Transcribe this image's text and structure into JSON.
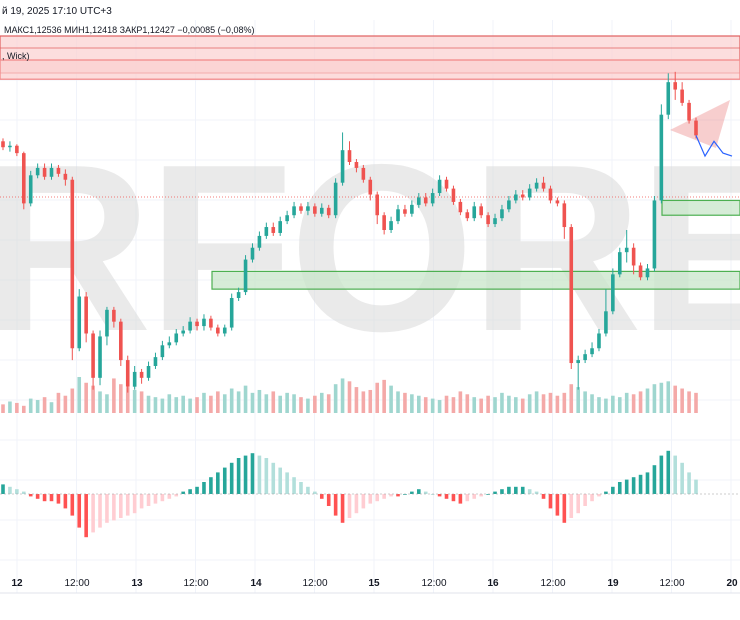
{
  "header": {
    "date_text": "й 19, 2025 17:10 UTC+3",
    "ohlc_text": "МАКС1,12536  МИН1,12418  ЗАКР1,12427  −0,00085 (−0,08%)",
    "indicator_text": ", Wick)"
  },
  "watermark": {
    "text": "RFOREX.c",
    "accent": "#e03a3a"
  },
  "colors": {
    "up": "#26a69a",
    "down": "#ef5350",
    "vol_up": "#9fd6cf",
    "vol_down": "#f4a9a8",
    "hist_up_strong": "#26a69a",
    "hist_up_weak": "#b2dfdb",
    "hist_down_strong": "#ff5252",
    "hist_down_weak": "#ffcdd2",
    "resistance": "#f28b8b",
    "resistance_fill": "#fbd0d0",
    "support": "#4caf50",
    "support_fill": "#c8e6c9",
    "projection": "#2962ff"
  },
  "chart_data": {
    "type": "candlestick",
    "x_axis": {
      "tick_labels": [
        "12",
        "12:00",
        "13",
        "12:00",
        "14",
        "12:00",
        "15",
        "12:00",
        "16",
        "12:00",
        "19",
        "12:00",
        "20"
      ]
    },
    "candles": [
      [
        0.7,
        0.66,
        0.72,
        0.64
      ],
      [
        0.66,
        0.67,
        0.7,
        0.63
      ],
      [
        0.67,
        0.62,
        0.68,
        0.6
      ],
      [
        0.62,
        0.28,
        0.63,
        0.24
      ],
      [
        0.28,
        0.47,
        0.5,
        0.26
      ],
      [
        0.47,
        0.52,
        0.55,
        0.45
      ],
      [
        0.52,
        0.46,
        0.55,
        0.44
      ],
      [
        0.46,
        0.52,
        0.55,
        0.44
      ],
      [
        0.52,
        0.48,
        0.54,
        0.46
      ],
      [
        0.48,
        0.44,
        0.51,
        0.4
      ],
      [
        0.44,
        -0.7,
        0.46,
        -0.78
      ],
      [
        -0.7,
        -0.35,
        -0.3,
        -0.72
      ],
      [
        -0.35,
        -0.6,
        -0.32,
        -0.66
      ],
      [
        -0.6,
        -0.9,
        -0.58,
        -0.98
      ],
      [
        -0.9,
        -0.62,
        -0.58,
        -0.95
      ],
      [
        -0.62,
        -0.44,
        -0.42,
        -0.68
      ],
      [
        -0.44,
        -0.52,
        -0.42,
        -0.56
      ],
      [
        -0.52,
        -0.78,
        -0.5,
        -0.82
      ],
      [
        -0.78,
        -0.96,
        -0.75,
        -1.0
      ],
      [
        -0.96,
        -0.86,
        -0.82,
        -0.98
      ],
      [
        -0.86,
        -0.9,
        -0.84,
        -0.94
      ],
      [
        -0.9,
        -0.82,
        -0.79,
        -0.92
      ],
      [
        -0.82,
        -0.76,
        -0.73,
        -0.84
      ],
      [
        -0.76,
        -0.68,
        -0.65,
        -0.78
      ],
      [
        -0.68,
        -0.66,
        -0.62,
        -0.7
      ],
      [
        -0.66,
        -0.6,
        -0.57,
        -0.68
      ],
      [
        -0.6,
        -0.58,
        -0.55,
        -0.62
      ],
      [
        -0.58,
        -0.52,
        -0.49,
        -0.6
      ],
      [
        -0.52,
        -0.55,
        -0.5,
        -0.58
      ],
      [
        -0.55,
        -0.5,
        -0.47,
        -0.58
      ],
      [
        -0.5,
        -0.56,
        -0.48,
        -0.58
      ],
      [
        -0.56,
        -0.6,
        -0.54,
        -0.62
      ],
      [
        -0.6,
        -0.56,
        -0.54,
        -0.62
      ],
      [
        -0.56,
        -0.36,
        -0.33,
        -0.58
      ],
      [
        -0.36,
        -0.32,
        -0.29,
        -0.38
      ],
      [
        -0.32,
        -0.1,
        -0.07,
        -0.34
      ],
      [
        -0.1,
        -0.02,
        0.01,
        -0.12
      ],
      [
        -0.02,
        0.06,
        0.09,
        -0.04
      ],
      [
        0.06,
        0.12,
        0.15,
        0.04
      ],
      [
        0.12,
        0.08,
        0.15,
        0.06
      ],
      [
        0.08,
        0.16,
        0.19,
        0.06
      ],
      [
        0.16,
        0.2,
        0.23,
        0.14
      ],
      [
        0.2,
        0.26,
        0.29,
        0.18
      ],
      [
        0.26,
        0.23,
        0.28,
        0.21
      ],
      [
        0.23,
        0.26,
        0.29,
        0.2
      ],
      [
        0.26,
        0.21,
        0.28,
        0.19
      ],
      [
        0.21,
        0.25,
        0.28,
        0.19
      ],
      [
        0.25,
        0.2,
        0.27,
        0.18
      ],
      [
        0.2,
        0.42,
        0.45,
        0.18
      ],
      [
        0.42,
        0.64,
        0.76,
        0.4
      ],
      [
        0.64,
        0.56,
        0.7,
        0.54
      ],
      [
        0.56,
        0.52,
        0.58,
        0.49
      ],
      [
        0.52,
        0.44,
        0.54,
        0.42
      ],
      [
        0.44,
        0.34,
        0.46,
        0.3
      ],
      [
        0.34,
        0.2,
        0.36,
        0.14
      ],
      [
        0.2,
        0.1,
        0.22,
        0.07
      ],
      [
        0.1,
        0.16,
        0.19,
        0.08
      ],
      [
        0.16,
        0.24,
        0.27,
        0.14
      ],
      [
        0.24,
        0.21,
        0.27,
        0.19
      ],
      [
        0.21,
        0.27,
        0.3,
        0.19
      ],
      [
        0.27,
        0.32,
        0.35,
        0.25
      ],
      [
        0.32,
        0.28,
        0.35,
        0.26
      ],
      [
        0.28,
        0.35,
        0.38,
        0.26
      ],
      [
        0.35,
        0.44,
        0.47,
        0.33
      ],
      [
        0.44,
        0.38,
        0.46,
        0.36
      ],
      [
        0.38,
        0.29,
        0.4,
        0.27
      ],
      [
        0.29,
        0.22,
        0.31,
        0.2
      ],
      [
        0.22,
        0.18,
        0.24,
        0.16
      ],
      [
        0.18,
        0.26,
        0.29,
        0.16
      ],
      [
        0.26,
        0.2,
        0.28,
        0.18
      ],
      [
        0.2,
        0.14,
        0.22,
        0.12
      ],
      [
        0.14,
        0.18,
        0.21,
        0.12
      ],
      [
        0.18,
        0.24,
        0.27,
        0.16
      ],
      [
        0.24,
        0.3,
        0.33,
        0.22
      ],
      [
        0.3,
        0.34,
        0.37,
        0.28
      ],
      [
        0.34,
        0.32,
        0.37,
        0.3
      ],
      [
        0.32,
        0.38,
        0.41,
        0.3
      ],
      [
        0.38,
        0.42,
        0.45,
        0.36
      ],
      [
        0.42,
        0.38,
        0.46,
        0.36
      ],
      [
        0.38,
        0.3,
        0.4,
        0.28
      ],
      [
        0.3,
        0.28,
        0.32,
        0.26
      ],
      [
        0.28,
        0.12,
        0.3,
        0.04
      ],
      [
        0.12,
        -0.8,
        0.14,
        -0.84
      ],
      [
        -0.8,
        -0.78,
        -0.75,
        -0.98
      ],
      [
        -0.78,
        -0.74,
        -0.71,
        -0.8
      ],
      [
        -0.74,
        -0.7,
        -0.66,
        -0.76
      ],
      [
        -0.7,
        -0.6,
        -0.57,
        -0.72
      ],
      [
        -0.6,
        -0.45,
        -0.3,
        -0.62
      ],
      [
        -0.45,
        -0.2,
        -0.16,
        -0.47
      ],
      [
        -0.2,
        -0.05,
        -0.02,
        -0.22
      ],
      [
        -0.05,
        -0.02,
        0.1,
        -0.12
      ],
      [
        -0.02,
        -0.14,
        0.01,
        -0.2
      ],
      [
        -0.14,
        -0.22,
        -0.12,
        -0.24
      ],
      [
        -0.22,
        -0.16,
        -0.13,
        -0.24
      ],
      [
        -0.16,
        0.3,
        0.33,
        -0.18
      ],
      [
        0.3,
        0.88,
        0.95,
        0.28
      ],
      [
        0.88,
        1.1,
        1.16,
        0.85
      ],
      [
        1.1,
        1.05,
        1.17,
        0.98
      ],
      [
        1.05,
        0.96,
        1.1,
        0.94
      ],
      [
        0.96,
        0.84,
        0.98,
        0.82
      ],
      [
        0.84,
        0.74,
        0.86,
        0.72
      ]
    ],
    "volume": [
      12,
      16,
      14,
      10,
      20,
      18,
      22,
      15,
      28,
      24,
      34,
      50,
      42,
      38,
      30,
      26,
      48,
      40,
      36,
      32,
      30,
      24,
      22,
      20,
      26,
      22,
      24,
      20,
      22,
      28,
      24,
      30,
      26,
      34,
      30,
      38,
      28,
      32,
      26,
      30,
      24,
      28,
      26,
      22,
      20,
      24,
      28,
      26,
      40,
      48,
      44,
      36,
      30,
      32,
      42,
      46,
      38,
      30,
      28,
      26,
      24,
      22,
      20,
      18,
      24,
      22,
      30,
      26,
      22,
      20,
      24,
      22,
      28,
      24,
      22,
      20,
      26,
      30,
      26,
      28,
      24,
      28,
      40,
      36,
      30,
      26,
      22,
      20,
      24,
      22,
      28,
      26,
      30,
      34,
      40,
      42,
      44,
      38,
      34,
      30,
      28
    ],
    "histogram": [
      4,
      3,
      2,
      1,
      -1,
      -2,
      -3,
      -3,
      -4,
      -6,
      -9,
      -14,
      -18,
      -16,
      -14,
      -12,
      -11,
      -10,
      -9,
      -8,
      -6,
      -5,
      -4,
      -3,
      -2,
      -1,
      1,
      2,
      3,
      5,
      7,
      9,
      11,
      13,
      15,
      16,
      17,
      16,
      15,
      13,
      11,
      9,
      7,
      5,
      3,
      1,
      -2,
      -5,
      -9,
      -12,
      -10,
      -8,
      -6,
      -4,
      -3,
      -2,
      -1,
      -1,
      0,
      1,
      2,
      1,
      0,
      -1,
      -2,
      -3,
      -4,
      -3,
      -2,
      -1,
      0,
      1,
      2,
      3,
      3,
      3,
      2,
      1,
      -2,
      -6,
      -9,
      -12,
      -10,
      -8,
      -5,
      -3,
      -1,
      1,
      3,
      5,
      6,
      7,
      8,
      9,
      12,
      16,
      18,
      16,
      13,
      9,
      6
    ],
    "projection": [
      [
        0.74,
        0.6
      ],
      [
        0.58,
        0.7
      ],
      [
        0.66,
        0.62
      ],
      [
        0.7,
        0.6
      ]
    ],
    "ylim": [
      -1.05,
      1.25
    ],
    "resistance_zones": [
      [
        1.12,
        1.25
      ]
    ],
    "support_zones": [
      [
        0.2,
        0.3
      ],
      [
        -0.3,
        -0.18
      ]
    ]
  }
}
